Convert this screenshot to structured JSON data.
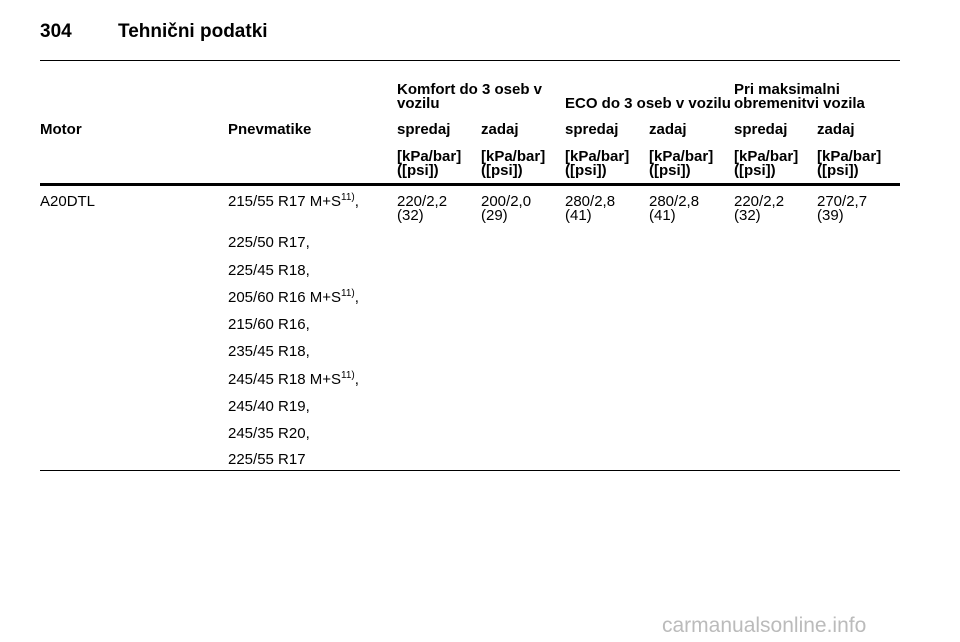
{
  "header": {
    "page_number": "304",
    "title": "Tehnični podatki"
  },
  "table": {
    "groups": [
      [
        "Komfort do 3 oseb v",
        "vozilu"
      ],
      [
        "ECO do 3 oseb v vozilu"
      ],
      [
        "Pri maksimalni",
        "obremenitvi vozila"
      ]
    ],
    "columns": [
      "Motor",
      "Pnevmatike",
      "spredaj",
      "zadaj",
      "spredaj",
      "zadaj",
      "spredaj",
      "zadaj"
    ],
    "units": [
      [
        "[kPa/bar]",
        "([psi])"
      ],
      [
        "[kPa/bar]",
        "([psi])"
      ],
      [
        "[kPa/bar]",
        "([psi])"
      ],
      [
        "[kPa/bar]",
        "([psi])"
      ],
      [
        "[kPa/bar]",
        "([psi])"
      ],
      [
        "[kPa/bar]",
        "([psi])"
      ]
    ],
    "rows": [
      {
        "motor": "A20DTL",
        "tires": [
          {
            "label": "215/55 R17 M+S",
            "note": "11)",
            "punct": ","
          },
          {
            "label": "225/50 R17,"
          },
          {
            "label": "225/45 R18,"
          },
          {
            "label": "205/60 R16 M+S",
            "note": "11)",
            "punct": ","
          },
          {
            "label": "215/60 R16,"
          },
          {
            "label": "235/45 R18,"
          },
          {
            "label": "245/45 R18 M+S",
            "note": "11)",
            "punct": ","
          },
          {
            "label": "245/40 R19,"
          },
          {
            "label": "245/35 R20,"
          },
          {
            "label": "225/55 R17"
          }
        ],
        "pressures": [
          [
            "220/2,2",
            "(32)"
          ],
          [
            "200/2,0",
            "(29)"
          ],
          [
            "280/2,8",
            "(41)"
          ],
          [
            "280/2,8",
            "(41)"
          ],
          [
            "220/2,2",
            "(32)"
          ],
          [
            "270/2,7",
            "(39)"
          ]
        ]
      }
    ]
  },
  "watermark": "carmanualsonline.info"
}
